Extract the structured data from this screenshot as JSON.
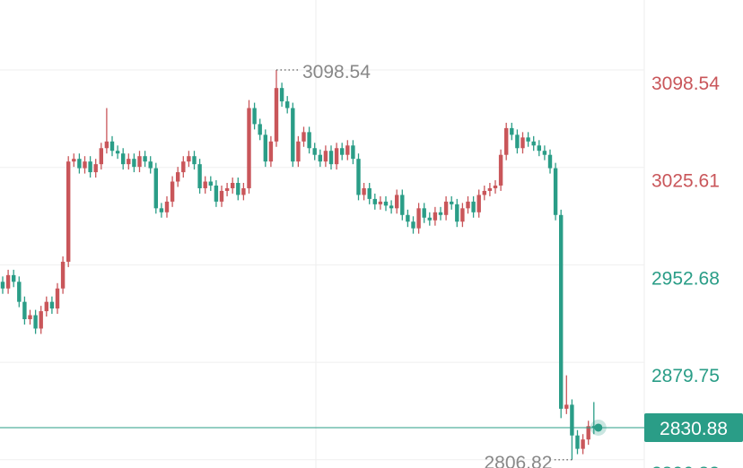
{
  "chart_data": {
    "type": "candlestick",
    "up_color": "#c9565a",
    "down_color": "#2a9d87",
    "ylim": [
      2800.65,
      3150.87
    ],
    "yticks": [
      3098.54,
      3025.61,
      2952.68,
      2879.75,
      2806.82
    ],
    "ytick_colors": [
      "#c9565a",
      "#c9565a",
      "#2a9d87",
      "#2a9d87",
      "#2a9d87"
    ],
    "grid": true,
    "last_price": 2830.88,
    "max_index": 50,
    "min_index": 104,
    "open": [
      2940,
      2935,
      2945,
      2940,
      2925,
      2912,
      2915,
      2905,
      2918,
      2925,
      2920,
      2935,
      2955,
      3030,
      3032,
      3025,
      3030,
      3022,
      3028,
      3040,
      3045,
      3038,
      3036,
      3028,
      3032,
      3026,
      3034,
      3030,
      3025,
      2995,
      2992,
      3000,
      3015,
      3022,
      3030,
      3034,
      3028,
      3010,
      3015,
      3012,
      3000,
      3008,
      3010,
      3014,
      3005,
      3010,
      3070,
      3058,
      3050,
      3030,
      3045,
      3085,
      3075,
      3070,
      3030,
      3045,
      3052,
      3040,
      3035,
      3030,
      3038,
      3028,
      3040,
      3035,
      3042,
      3032,
      3005,
      3010,
      3002,
      2998,
      3000,
      2997,
      2995,
      3005,
      2990,
      2985,
      2980,
      2995,
      2988,
      2986,
      2992,
      2990,
      3000,
      2998,
      2985,
      2995,
      3000,
      2992,
      3005,
      3008,
      3010,
      3012,
      3035,
      3055,
      3050,
      3040,
      3048,
      3045,
      3042,
      3038,
      3035,
      3025,
      2990,
      2845,
      2848,
      2825,
      2815,
      2822,
      2832
    ],
    "high": [
      2944,
      2949,
      2949,
      2944,
      2929,
      2919,
      2919,
      2922,
      2929,
      2929,
      2939,
      2959,
      3034,
      3036,
      3036,
      3034,
      3034,
      3032,
      3044,
      3070,
      3049,
      3042,
      3040,
      3036,
      3036,
      3038,
      3038,
      3034,
      3029,
      2999,
      3004,
      3019,
      3026,
      3034,
      3038,
      3038,
      3032,
      3019,
      3019,
      3016,
      3012,
      3014,
      3018,
      3018,
      3014,
      3076,
      3074,
      3062,
      3054,
      3049,
      3098.54,
      3089,
      3079,
      3074,
      3049,
      3056,
      3056,
      3044,
      3039,
      3042,
      3042,
      3044,
      3044,
      3046,
      3046,
      3036,
      3014,
      3014,
      3006,
      3004,
      3004,
      3001,
      3009,
      3009,
      2994,
      2989,
      2999,
      2999,
      2992,
      2996,
      2996,
      3004,
      3004,
      3002,
      2999,
      3004,
      3004,
      3009,
      3012,
      3014,
      3016,
      3039,
      3059,
      3059,
      3054,
      3052,
      3052,
      3049,
      3046,
      3042,
      3039,
      3029,
      2994,
      2870,
      2852,
      2829,
      2826,
      2836,
      2850
    ],
    "low": [
      2931,
      2931,
      2936,
      2921,
      2908,
      2908,
      2901,
      2901,
      2914,
      2916,
      2916,
      2931,
      2951,
      3026,
      3021,
      3021,
      3018,
      3018,
      3024,
      3036,
      3034,
      3032,
      3024,
      3024,
      3022,
      3022,
      3026,
      3021,
      2991,
      2988,
      2988,
      2996,
      3011,
      3018,
      3026,
      3024,
      3006,
      3006,
      3008,
      2996,
      2996,
      3004,
      3006,
      3001,
      3001,
      3006,
      3054,
      3046,
      3026,
      3026,
      3041,
      3071,
      3066,
      3026,
      3026,
      3041,
      3036,
      3031,
      3026,
      3026,
      3024,
      3024,
      3031,
      3031,
      3028,
      3001,
      3001,
      2998,
      2994,
      2994,
      2993,
      2991,
      2991,
      2986,
      2981,
      2976,
      2976,
      2984,
      2982,
      2982,
      2986,
      2986,
      2994,
      2981,
      2981,
      2991,
      2988,
      2988,
      3001,
      3004,
      3006,
      3008,
      3031,
      3046,
      3036,
      3036,
      3041,
      3038,
      3034,
      3031,
      3021,
      2986,
      2838,
      2841,
      2806.82,
      2811,
      2811,
      2818,
      2826
    ],
    "close": [
      2935,
      2945,
      2940,
      2925,
      2912,
      2915,
      2905,
      2918,
      2925,
      2920,
      2935,
      2955,
      3030,
      3032,
      3025,
      3030,
      3022,
      3028,
      3040,
      3045,
      3038,
      3036,
      3028,
      3032,
      3026,
      3034,
      3030,
      3025,
      2995,
      2992,
      3000,
      3015,
      3022,
      3030,
      3034,
      3028,
      3010,
      3015,
      3012,
      3000,
      3008,
      3010,
      3014,
      3005,
      3010,
      3070,
      3058,
      3050,
      3030,
      3045,
      3085,
      3075,
      3070,
      3030,
      3045,
      3052,
      3040,
      3035,
      3030,
      3038,
      3028,
      3040,
      3035,
      3042,
      3032,
      3005,
      3010,
      3002,
      2998,
      3000,
      2997,
      2995,
      3005,
      2990,
      2985,
      2980,
      2995,
      2988,
      2986,
      2992,
      2990,
      3000,
      2998,
      2985,
      2995,
      3000,
      2992,
      3005,
      3008,
      3010,
      3012,
      3035,
      3055,
      3050,
      3040,
      3048,
      3045,
      3042,
      3038,
      3035,
      3025,
      2990,
      2845,
      2848,
      2825,
      2815,
      2822,
      2832,
      2830.88
    ]
  }
}
